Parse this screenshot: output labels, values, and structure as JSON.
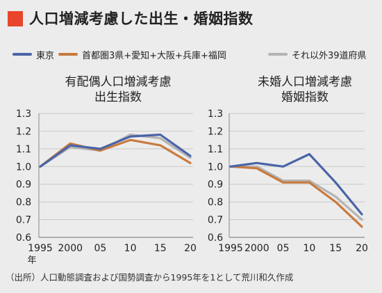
{
  "header": {
    "title": "人口増減考慮した出生・婚姻指数",
    "marker_color": "#e8452c"
  },
  "legend": [
    {
      "label": "東京",
      "color": "#4a64a8"
    },
    {
      "label": "首都圏3県+愛知+大阪+兵庫+福岡",
      "color": "#c87a3e"
    },
    {
      "label": "それ以外39道府県",
      "color": "#b4b4b4"
    }
  ],
  "chart_data": [
    {
      "type": "line",
      "title_lines": [
        "有配偶人口増減考慮",
        "出生指数"
      ],
      "categories": [
        "1995",
        "2000",
        "05",
        "10",
        "15",
        "20"
      ],
      "x_extra_label": "年",
      "ylim": [
        0.6,
        1.3
      ],
      "yticks": [
        "0.6",
        "0.7",
        "0.8",
        "0.9",
        "1.0",
        "1.1",
        "1.2",
        "1.3"
      ],
      "grid": true,
      "series": [
        {
          "name": "東京",
          "color": "#4a64a8",
          "values": [
            1.0,
            1.12,
            1.1,
            1.17,
            1.18,
            1.06
          ]
        },
        {
          "name": "首都圏3県+愛知+大阪+兵庫+福岡",
          "color": "#c87a3e",
          "values": [
            1.0,
            1.13,
            1.09,
            1.15,
            1.12,
            1.02
          ]
        },
        {
          "name": "それ以外39道府県",
          "color": "#b4b4b4",
          "values": [
            1.0,
            1.11,
            1.09,
            1.18,
            1.16,
            1.05
          ]
        }
      ]
    },
    {
      "type": "line",
      "title_lines": [
        "未婚人口増減考慮",
        "婚姻指数"
      ],
      "categories": [
        "1995",
        "2000",
        "05",
        "10",
        "15",
        "20"
      ],
      "ylim": [
        0.6,
        1.3
      ],
      "yticks": [
        "0.6",
        "0.7",
        "0.8",
        "0.9",
        "1.0",
        "1.1",
        "1.2",
        "1.3"
      ],
      "grid": true,
      "series": [
        {
          "name": "東京",
          "color": "#4a64a8",
          "values": [
            1.0,
            1.02,
            1.0,
            1.07,
            0.91,
            0.73
          ]
        },
        {
          "name": "首都圏3県+愛知+大阪+兵庫+福岡",
          "color": "#c87a3e",
          "values": [
            1.0,
            0.99,
            0.91,
            0.91,
            0.8,
            0.66
          ]
        },
        {
          "name": "それ以外39道府県",
          "color": "#b4b4b4",
          "values": [
            1.0,
            1.0,
            0.92,
            0.92,
            0.83,
            0.7
          ]
        }
      ]
    }
  ],
  "source": {
    "text": "（出所）人口動態調査および国勢調査から1995年を1として荒川和久作成"
  }
}
